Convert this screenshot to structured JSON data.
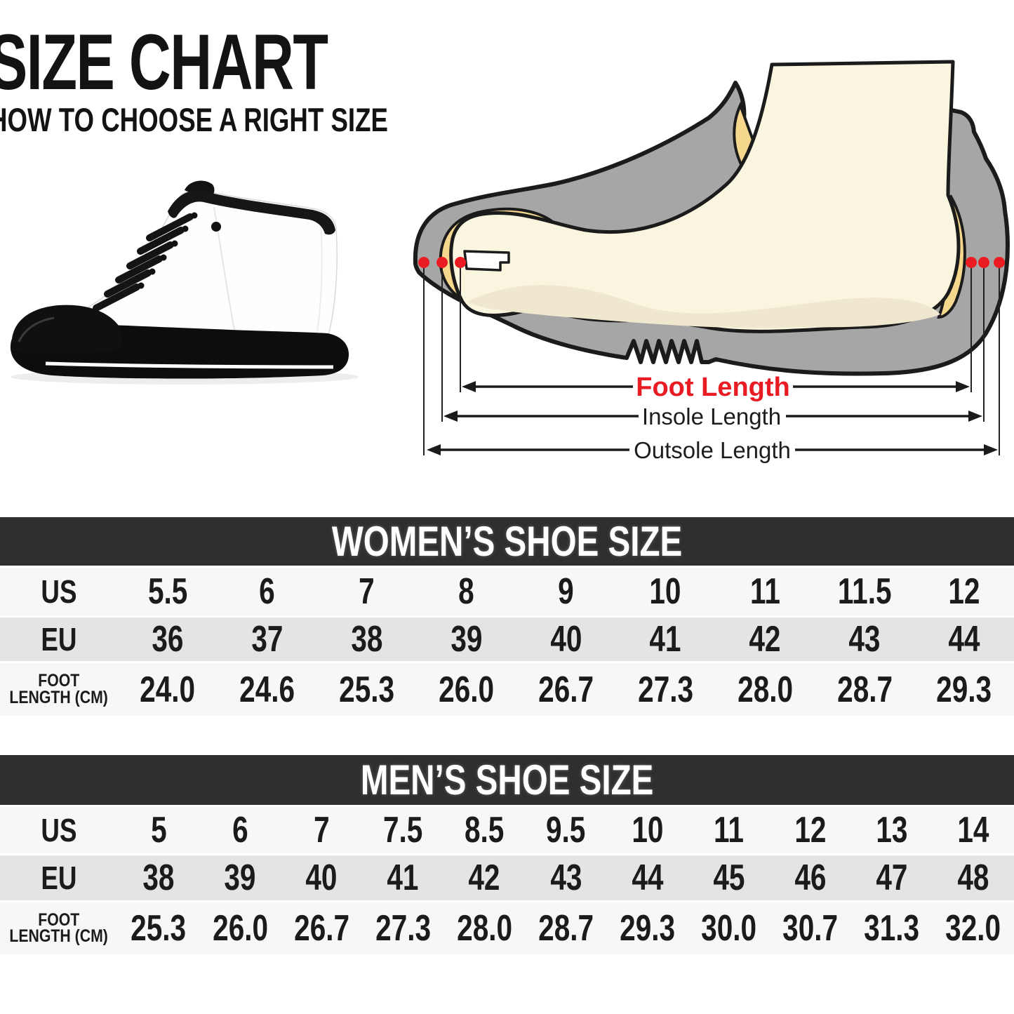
{
  "title": {
    "heading": "SIZE CHART",
    "subheading": "HOW TO CHOOSE A RIGHT SIZE"
  },
  "diagram": {
    "foot_length_label": "Foot Length",
    "insole_length_label": "Insole Length",
    "outsole_length_label": "Outsole Length",
    "colors": {
      "marker_red": "#e91c23",
      "shoe_gray": "#a6a6a6",
      "lining_yellow": "#f5d88e",
      "foot_cream": "#f9f5df",
      "outline_black": "#1b1b1b"
    }
  },
  "women_table": {
    "title": "WOMEN’S SHOE SIZE",
    "rows": [
      {
        "label": "US",
        "values": [
          "5.5",
          "6",
          "7",
          "8",
          "9",
          "10",
          "11",
          "11.5",
          "12"
        ]
      },
      {
        "label": "EU",
        "values": [
          "36",
          "37",
          "38",
          "39",
          "40",
          "41",
          "42",
          "43",
          "44"
        ]
      },
      {
        "label_line1": "FOOT",
        "label_line2": "LENGTH (CM)",
        "values": [
          "24.0",
          "24.6",
          "25.3",
          "26.0",
          "26.7",
          "27.3",
          "28.0",
          "28.7",
          "29.3"
        ]
      }
    ]
  },
  "men_table": {
    "title": "MEN’S SHOE SIZE",
    "rows": [
      {
        "label": "US",
        "values": [
          "5",
          "6",
          "7",
          "7.5",
          "8.5",
          "9.5",
          "10",
          "11",
          "12",
          "13",
          "14"
        ]
      },
      {
        "label": "EU",
        "values": [
          "38",
          "39",
          "40",
          "41",
          "42",
          "43",
          "44",
          "45",
          "46",
          "47",
          "48"
        ]
      },
      {
        "label_line1": "FOOT",
        "label_line2": "LENGTH (CM)",
        "values": [
          "25.3",
          "26.0",
          "26.7",
          "27.3",
          "28.0",
          "28.7",
          "29.3",
          "30.0",
          "30.7",
          "31.3",
          "32.0"
        ]
      }
    ]
  },
  "colors": {
    "header_bar": "#2f2f31",
    "row_light": "#f7f7f7",
    "row_shaded": "#e4e4e4",
    "text_dark": "#1b1b1b",
    "accent_red": "#e91c23"
  }
}
